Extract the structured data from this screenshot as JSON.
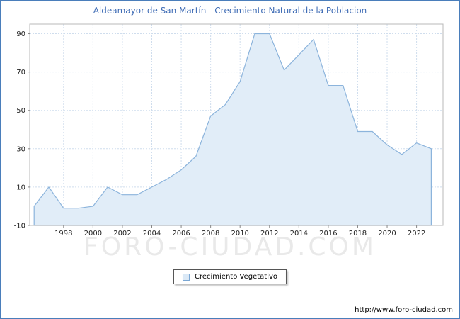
{
  "window": {
    "border_color": "#4a7ebb"
  },
  "header": {
    "title": "Aldeamayor de San Martín - Crecimiento Natural de la Poblacion",
    "title_color": "#3f6cb5"
  },
  "legend": {
    "label": "Crecimiento Vegetativo",
    "swatch_color": "#dbe9f6",
    "swatch_border_color": "#7aa7d4"
  },
  "watermark": "FORO-CIUDAD.COM",
  "footer": {
    "url": "http://www.foro-ciudad.com"
  },
  "chart_data": {
    "type": "area",
    "title": "Aldeamayor de San Martín - Crecimiento Natural de la Poblacion",
    "series_name": "Crecimiento Vegetativo",
    "x": [
      1996,
      1997,
      1998,
      1999,
      2000,
      2001,
      2002,
      2003,
      2004,
      2005,
      2006,
      2007,
      2008,
      2009,
      2010,
      2011,
      2012,
      2013,
      2014,
      2015,
      2016,
      2017,
      2018,
      2019,
      2020,
      2021,
      2022,
      2023
    ],
    "values": [
      0,
      10,
      -1,
      -1,
      0,
      10,
      6,
      6,
      10,
      14,
      19,
      26,
      47,
      53,
      65,
      90,
      90,
      71,
      79,
      87,
      63,
      63,
      39,
      39,
      32,
      27,
      33,
      30
    ],
    "xticks": [
      1998,
      2000,
      2002,
      2004,
      2006,
      2008,
      2010,
      2012,
      2014,
      2016,
      2018,
      2020,
      2022
    ],
    "yticks": [
      -10,
      10,
      30,
      50,
      70,
      90
    ],
    "ylim": [
      -10,
      95
    ],
    "xlim": [
      1995.7,
      2023.8
    ],
    "xlabel": "",
    "ylabel": "",
    "grid": true,
    "legend_position": "bottom-center",
    "line_color": "#8cb4dc",
    "fill_color": "#e1edf8",
    "grid_color": "#cfdded",
    "plot_border_color": "#b8b8b8"
  }
}
